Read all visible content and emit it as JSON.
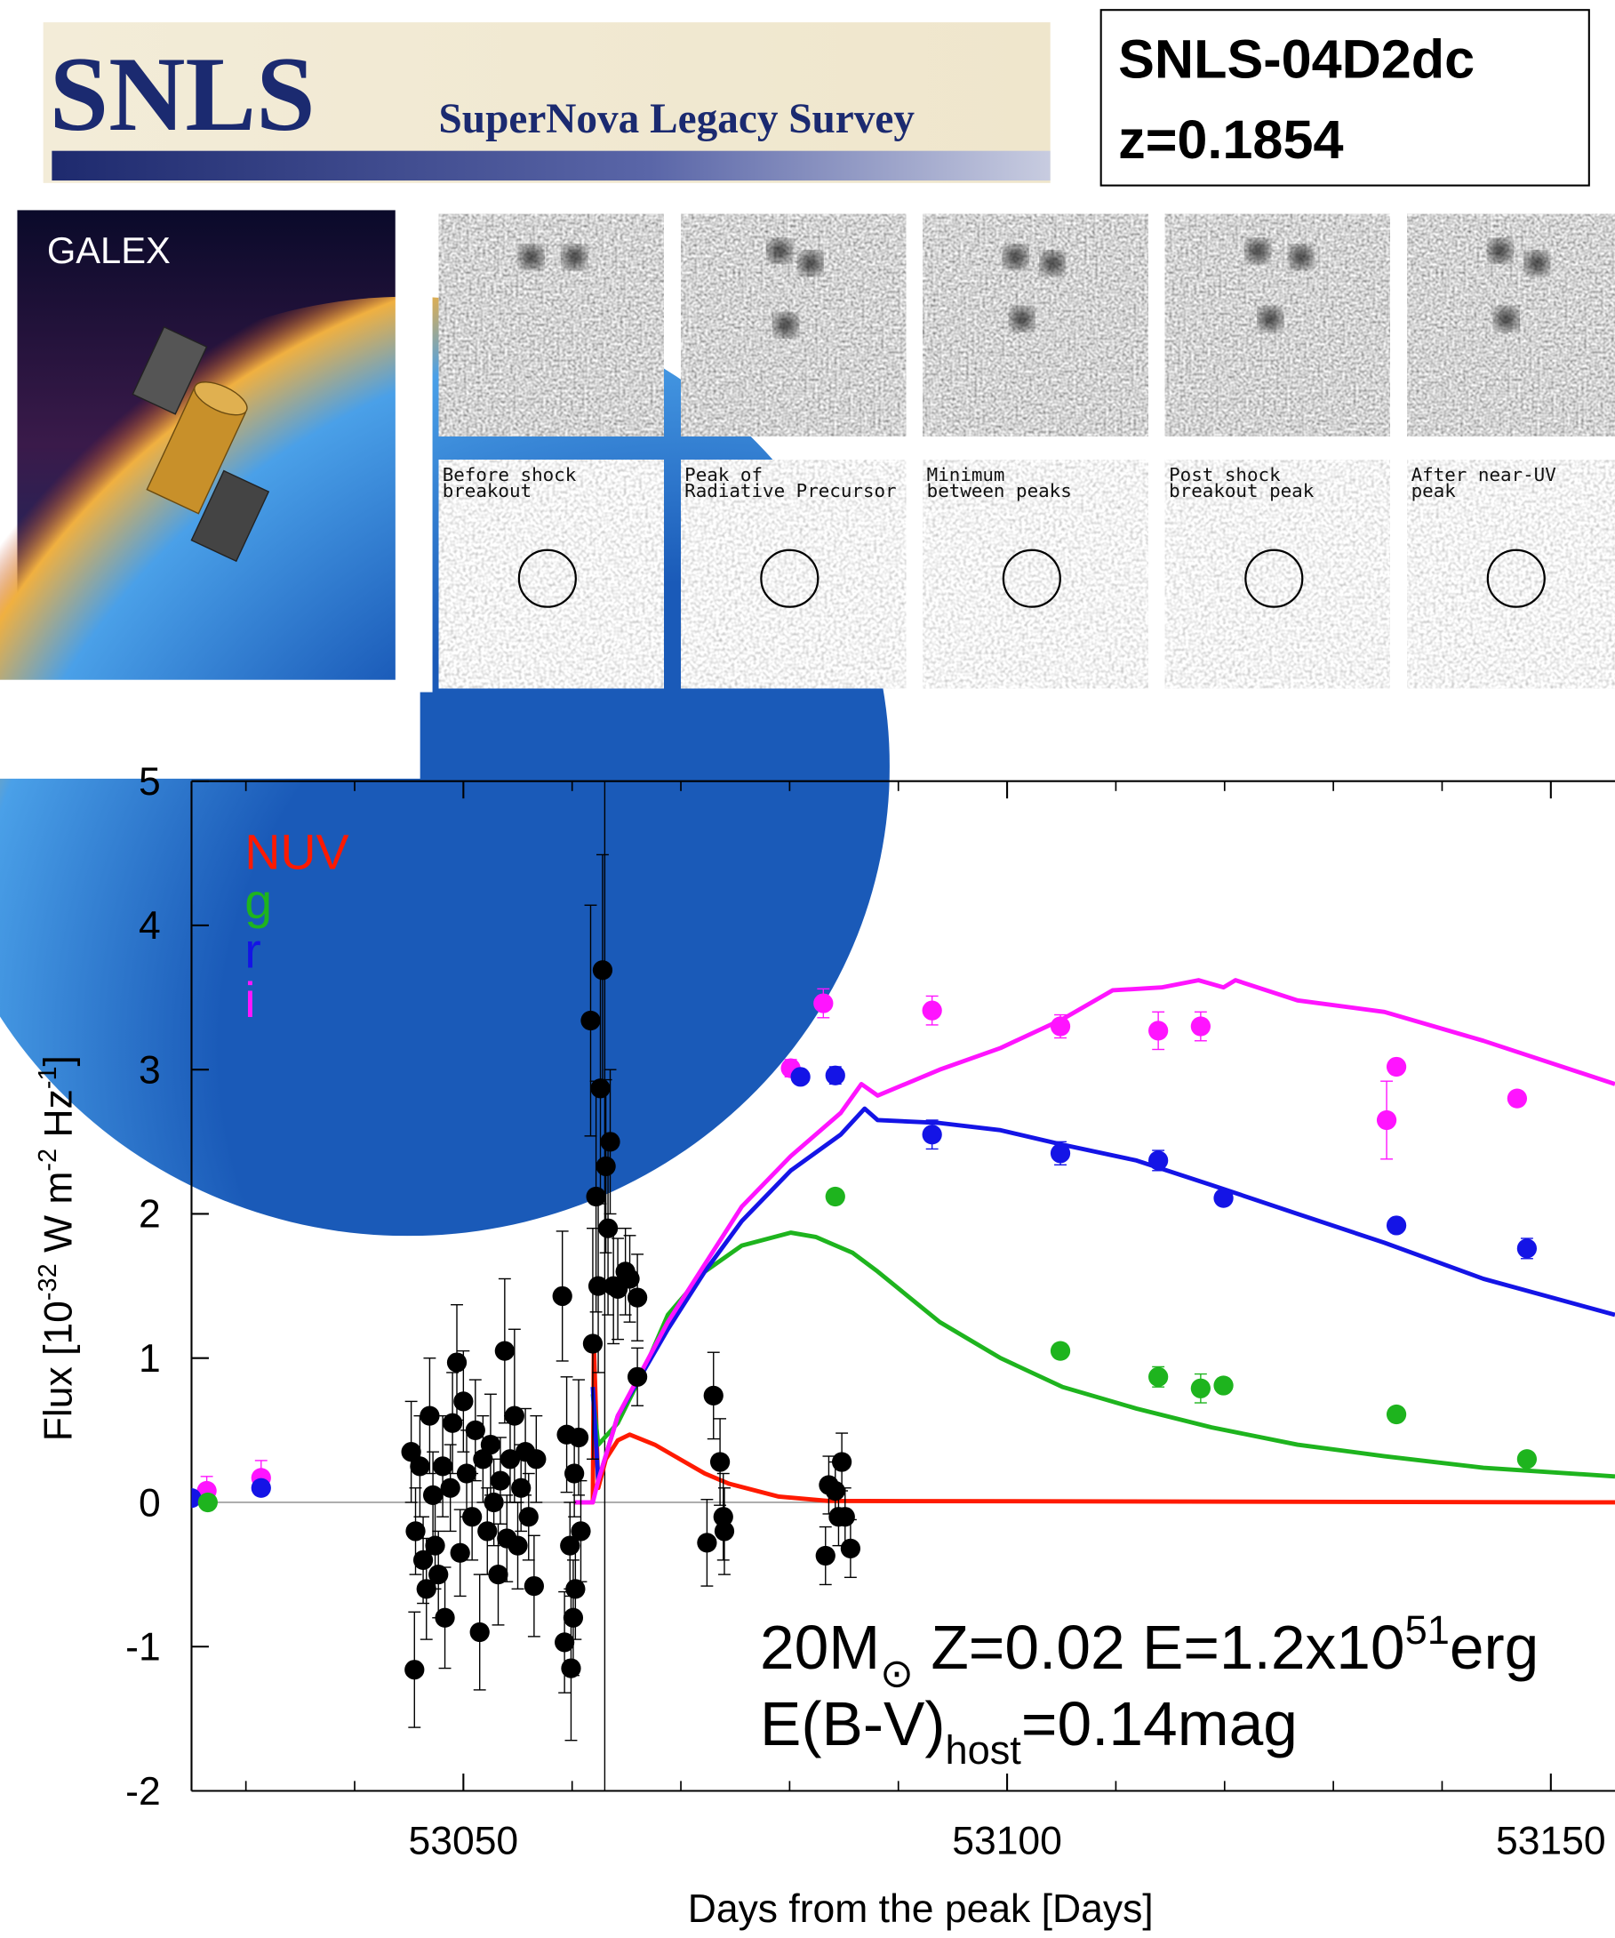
{
  "banner": {
    "logo": "SNLS",
    "subtitle": "SuperNova Legacy Survey"
  },
  "object": {
    "name": "SNLS-04D2dc",
    "redshift": "z=0.1854"
  },
  "satellite": {
    "label": "GALEX"
  },
  "thumbnails": [
    {
      "label": [
        "Before shock",
        "breakout"
      ]
    },
    {
      "label": [
        "Peak of",
        "Radiative Precursor"
      ]
    },
    {
      "label": [
        "Minimum",
        "between peaks"
      ]
    },
    {
      "label": [
        "Post shock",
        "breakout peak"
      ]
    },
    {
      "label": [
        "After near-UV",
        "peak"
      ]
    }
  ],
  "chart_data": {
    "type": "line",
    "xlabel": "Days from the peak [Days]",
    "ylabel": [
      {
        "text": "Flux [10"
      },
      {
        "text": "-32",
        "shift": "sup"
      },
      {
        "text": " W m"
      },
      {
        "text": "-2",
        "shift": "sup"
      },
      {
        "text": " Hz"
      },
      {
        "text": "-1",
        "shift": "sup"
      },
      {
        "text": "]"
      }
    ],
    "xlim": [
      53025,
      53155.9
    ],
    "ylim": [
      -2,
      5
    ],
    "xticks": [
      53050,
      53100,
      53150
    ],
    "xminor_ticks": [
      53030,
      53040,
      53060,
      53070,
      53080,
      53090,
      53110,
      53120,
      53130,
      53140
    ],
    "yticks": [
      -2,
      -1,
      0,
      1,
      2,
      3,
      4,
      5
    ],
    "vline": 53063,
    "annotations": [
      [
        {
          "text": "20M"
        },
        {
          "text": "⊙",
          "shift": "sub"
        },
        {
          "text": " Z=0.02 E=1.2x10"
        },
        {
          "text": "51",
          "shift": "sup"
        },
        {
          "text": "erg"
        }
      ],
      [
        {
          "text": "E(B-V)"
        },
        {
          "text": "host",
          "shift": "sub"
        },
        {
          "text": "=0.14mag"
        }
      ]
    ],
    "series": [
      {
        "name": "NUV",
        "color": "#ff1a00",
        "mode": "line",
        "x": [
          53060.2,
          53061.9,
          53062.0,
          53062.4,
          53063.1,
          53064.2,
          53065.3,
          53067.6,
          53069.9,
          53072.2,
          53074.4,
          53079,
          53083.5,
          53155.9
        ],
        "values": [
          0,
          0,
          1.1,
          0.1,
          0.3,
          0.43,
          0.47,
          0.4,
          0.3,
          0.2,
          0.13,
          0.04,
          0.01,
          0
        ]
      },
      {
        "name": "g",
        "color": "#1eb41e",
        "mode": "line",
        "x": [
          53061.9,
          53062.4,
          53064.2,
          53066.5,
          53068.8,
          53072.2,
          53075.6,
          53080.1,
          53082.4,
          53085.8,
          53088.1,
          53093.8,
          53099.4,
          53105.1,
          53111.9,
          53118.8,
          53126.7,
          53134.7,
          53143.8,
          53155.9
        ],
        "values": [
          0.75,
          0.4,
          0.55,
          0.9,
          1.3,
          1.6,
          1.78,
          1.87,
          1.84,
          1.73,
          1.6,
          1.25,
          1.0,
          0.8,
          0.65,
          0.52,
          0.4,
          0.32,
          0.24,
          0.18
        ]
      },
      {
        "name": "r",
        "color": "#1414e6",
        "mode": "line",
        "x": [
          53061.9,
          53062.4,
          53064.2,
          53068.8,
          53072.2,
          53075.6,
          53080.1,
          53084.7,
          53086.9,
          53088.1,
          53093.8,
          53099.4,
          53105.1,
          53111.9,
          53118.8,
          53126.7,
          53134.7,
          53143.8,
          53155.9
        ],
        "values": [
          0.8,
          0.15,
          0.6,
          1.2,
          1.6,
          1.95,
          2.3,
          2.55,
          2.73,
          2.65,
          2.63,
          2.58,
          2.48,
          2.37,
          2.2,
          2.0,
          1.8,
          1.55,
          1.3
        ]
      },
      {
        "name": "i",
        "color": "#ff14ff",
        "mode": "line",
        "x": [
          53060.2,
          53061.9,
          53062.4,
          53064.2,
          53068.8,
          53072.2,
          53075.6,
          53080.1,
          53084.7,
          53086.6,
          53088.1,
          53093.8,
          53099.4,
          53105.1,
          53109.7,
          53114.2,
          53117.6,
          53119.9,
          53121.0,
          53126.7,
          53134.7,
          53143.8,
          53155.9
        ],
        "values": [
          0,
          0,
          0.15,
          0.6,
          1.25,
          1.65,
          2.05,
          2.4,
          2.7,
          2.9,
          2.82,
          3.0,
          3.15,
          3.35,
          3.55,
          3.57,
          3.62,
          3.57,
          3.62,
          3.48,
          3.4,
          3.2,
          2.9
        ]
      },
      {
        "color": "#000000",
        "mode": "markers",
        "x": [
          53045.5,
          53045.2,
          53045.6,
          53046.0,
          53046.3,
          53046.6,
          53046.9,
          53047.2,
          53047.4,
          53047.7,
          53048.1,
          53048.3,
          53048.8,
          53049.0,
          53049.4,
          53049.7,
          53050.0,
          53050.3,
          53050.8,
          53051.1,
          53051.5,
          53051.8,
          53052.2,
          53052.5,
          53052.8,
          53053.2,
          53053.4,
          53053.8,
          53054.0,
          53054.3,
          53054.7,
          53055.0,
          53055.3,
          53055.7,
          53056.0,
          53056.5,
          53056.7,
          53059.1,
          53059.3,
          53059.5,
          53059.8,
          53059.9,
          53060.1,
          53060.2,
          53060.3,
          53060.6,
          53060.8,
          53061.7,
          53061.9,
          53062.2,
          53062.4,
          53062.6,
          53062.8,
          53063.1,
          53063.3,
          53063.5,
          53063.8,
          53064.2,
          53064.9,
          53065.3,
          53066.0,
          53066.0,
          53072.4,
          53073.0,
          53073.6,
          53074.0,
          53073.9,
          53083.3,
          53083.6,
          53084.2,
          53084.5,
          53084.8,
          53085.1,
          53085.6
        ],
        "values": [
          -1.16,
          0.35,
          -0.2,
          0.25,
          -0.4,
          -0.6,
          0.6,
          0.05,
          -0.3,
          -0.5,
          0.25,
          -0.8,
          0.1,
          0.55,
          0.97,
          -0.35,
          0.7,
          0.2,
          -0.1,
          0.5,
          -0.9,
          0.3,
          -0.2,
          0.4,
          0.0,
          -0.5,
          0.15,
          1.05,
          -0.25,
          0.3,
          0.6,
          -0.3,
          0.1,
          0.35,
          -0.1,
          -0.58,
          0.3,
          1.43,
          -0.97,
          0.47,
          -0.3,
          -1.15,
          -0.8,
          0.2,
          -0.6,
          0.45,
          -0.2,
          3.34,
          1.1,
          2.12,
          1.5,
          2.87,
          3.69,
          2.33,
          1.9,
          2.5,
          1.5,
          1.48,
          1.6,
          1.55,
          1.42,
          0.87,
          -0.28,
          0.74,
          0.28,
          -0.2,
          -0.1,
          -0.37,
          0.12,
          0.08,
          -0.1,
          0.28,
          -0.1,
          -0.32
        ],
        "errors": [
          0.4,
          0.35,
          0.3,
          0.35,
          0.3,
          0.35,
          0.4,
          0.3,
          0.3,
          0.3,
          0.35,
          0.35,
          0.3,
          0.35,
          0.4,
          0.3,
          0.35,
          0.3,
          0.3,
          0.35,
          0.4,
          0.3,
          0.3,
          0.35,
          0.3,
          0.35,
          0.3,
          0.5,
          0.3,
          0.3,
          0.6,
          0.3,
          0.3,
          0.3,
          0.3,
          0.35,
          0.3,
          0.45,
          0.35,
          0.4,
          0.3,
          0.5,
          0.4,
          0.3,
          0.35,
          0.4,
          0.35,
          0.8,
          0.8,
          0.8,
          0.6,
          0.8,
          0.8,
          0.6,
          0.6,
          0.5,
          0.4,
          0.35,
          0.3,
          0.3,
          0.3,
          0.2,
          0.3,
          0.3,
          0.3,
          0.3,
          0.3,
          0.2,
          0.2,
          0.2,
          0.2,
          0.2,
          0.2,
          0.2
        ]
      },
      {
        "color": "#ff14ff",
        "mode": "markers",
        "x": [
          53026.4,
          53031.4,
          53080.1,
          53083.1,
          53093.1,
          53104.9,
          53113.9,
          53117.8,
          53134.9,
          53135.8,
          53146.9
        ],
        "values": [
          0.08,
          0.17,
          3.01,
          3.46,
          3.41,
          3.3,
          3.27,
          3.3,
          2.65,
          3.02,
          2.8
        ],
        "errors": [
          0.1,
          0.12,
          0.06,
          0.1,
          0.1,
          0.08,
          0.13,
          0.1,
          0.27,
          0.05,
          0.05
        ]
      },
      {
        "color": "#1414e6",
        "mode": "markers",
        "x": [
          53025,
          53031.4,
          53081.0,
          53084.2,
          53093.1,
          53104.9,
          53113.9,
          53119.9,
          53135.8,
          53147.8
        ],
        "values": [
          0.03,
          0.1,
          2.95,
          2.96,
          2.55,
          2.42,
          2.37,
          2.11,
          1.92,
          1.76
        ],
        "errors": [
          0.03,
          0.05,
          0.05,
          0.06,
          0.1,
          0.08,
          0.07,
          0.05,
          0.05,
          0.07
        ]
      },
      {
        "color": "#1eb41e",
        "mode": "markers",
        "x": [
          53026.5,
          53084.2,
          53104.9,
          53113.9,
          53117.8,
          53119.9,
          53135.8,
          53147.8
        ],
        "values": [
          0.0,
          2.12,
          1.05,
          0.87,
          0.79,
          0.81,
          0.61,
          0.3
        ],
        "errors": [
          0.03,
          0.04,
          0.05,
          0.07,
          0.1,
          0.05,
          0.04,
          0.04
        ]
      }
    ]
  }
}
